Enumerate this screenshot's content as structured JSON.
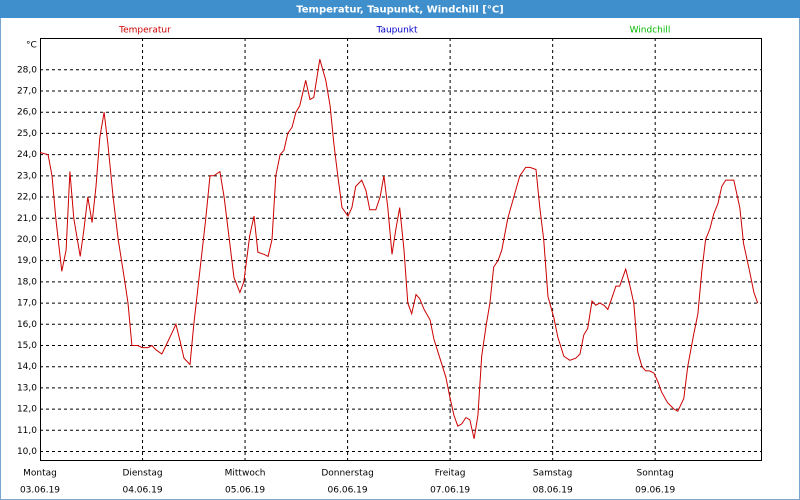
{
  "chart_data": {
    "type": "line",
    "title": "Temperatur, Taupunkt, Windchill [°C]",
    "y_unit": "°C",
    "x": [
      0,
      1.9,
      2.8,
      3.7,
      5.1,
      6.1,
      7.0,
      7.9,
      9.4,
      10.3,
      11.2,
      12.2,
      13.1,
      14.0,
      15.0,
      15.9,
      17.1,
      18.3,
      19.7,
      20.6,
      21.5,
      22.9,
      23.9,
      25.3,
      26.2,
      27.1,
      28.5,
      29.5,
      30.9,
      31.8,
      32.8,
      33.7,
      35.1,
      36.0,
      37.4,
      38.8,
      39.8,
      40.7,
      42.1,
      43.1,
      44.0,
      45.4,
      46.8,
      47.7,
      49.1,
      50.1,
      51.0,
      52.4,
      53.4,
      54.3,
      55.2,
      56.2,
      57.1,
      58.0,
      59.0,
      59.9,
      60.8,
      62.2,
      63.2,
      64.1,
      65.5,
      66.9,
      67.9,
      68.8,
      69.7,
      70.7,
      72.1,
      73.0,
      73.9,
      75.3,
      76.3,
      77.2,
      78.6,
      79.6,
      80.5,
      81.4,
      82.4,
      83.3,
      84.2,
      85.2,
      86.1,
      87.0,
      88.0,
      88.9,
      89.9,
      91.3,
      92.2,
      93.6,
      95.0,
      95.9,
      96.9,
      97.8,
      98.7,
      99.7,
      100.6,
      101.6,
      102.5,
      103.4,
      104.4,
      105.3,
      106.2,
      107.2,
      108.1,
      109.5,
      110.9,
      112.3,
      113.7,
      114.7,
      116.1,
      117.0,
      117.9,
      118.9,
      120.3,
      121.2,
      122.6,
      124.0,
      125.4,
      126.4,
      127.3,
      128.2,
      129.2,
      130.1,
      131.0,
      132.0,
      132.9,
      133.8,
      134.8,
      135.7,
      137.1,
      138.1,
      139.0,
      139.9,
      140.9,
      141.8,
      142.7,
      143.7,
      144.6,
      145.5,
      146.9,
      148.4,
      149.3,
      150.7,
      151.6,
      153.0,
      154.0,
      154.9,
      155.8,
      156.8,
      157.7,
      158.7,
      159.6,
      160.5,
      161.5,
      162.4,
      163.8,
      164.7,
      166.1,
      167.1,
      168.0
    ],
    "series": [
      {
        "name": "Temperatur",
        "color": "#cc0000",
        "values": [
          24.1,
          24.0,
          23,
          21,
          18.5,
          19.5,
          23.2,
          21,
          19.2,
          20.5,
          22,
          20.8,
          22.5,
          24.8,
          26.0,
          24.5,
          22,
          20,
          18.2,
          17,
          15,
          15,
          14.9,
          14.9,
          15,
          14.8,
          14.6,
          15,
          15.6,
          16,
          15.2,
          14.4,
          14.1,
          16,
          18.5,
          21,
          23,
          23,
          23.2,
          22,
          20.5,
          18.2,
          17.5,
          18,
          20.2,
          21.1,
          19.4,
          19.3,
          19.2,
          20,
          23,
          24,
          24.2,
          25,
          25.3,
          26,
          26.3,
          27.5,
          26.6,
          26.7,
          28.5,
          27.5,
          26.3,
          24.5,
          23,
          21.5,
          21.1,
          21.5,
          22.5,
          22.8,
          22.3,
          21.4,
          21.4,
          22,
          23,
          21.5,
          19.3,
          20.5,
          21.5,
          19.5,
          17,
          16.5,
          17.4,
          17.2,
          16.7,
          16.2,
          15.3,
          14.4,
          13.5,
          12.6,
          11.7,
          11.2,
          11.3,
          11.6,
          11.5,
          10.6,
          11.7,
          14.5,
          15.9,
          17,
          18.7,
          19,
          19.5,
          21,
          22,
          23,
          23.4,
          23.4,
          23.3,
          21.5,
          20,
          17.3,
          16.3,
          15.4,
          14.5,
          14.3,
          14.4,
          14.6,
          15.5,
          15.8,
          17.1,
          16.9,
          17,
          16.9,
          16.7,
          17.2,
          17.8,
          17.8,
          18.6,
          17.8,
          17,
          14.7,
          14,
          13.8,
          13.8,
          13.7,
          13.3,
          12.8,
          12.3,
          12,
          11.9,
          12.5,
          14,
          15.5,
          16.5,
          18.5,
          20,
          20.5,
          21.2,
          21.7,
          22.5,
          22.8,
          22.8,
          22.8,
          21.5,
          19.8,
          18.5,
          17.5,
          17
        ]
      }
    ],
    "legend": [
      {
        "name": "Taupunkt",
        "color": "#0000cc"
      },
      {
        "name": "Windchill",
        "color": "#00bb00"
      }
    ],
    "xlim": [
      0,
      169
    ],
    "xticks": [
      {
        "value": 0,
        "label": "Montag"
      },
      {
        "value": 24,
        "label": "Dienstag"
      },
      {
        "value": 48,
        "label": "Mittwoch"
      },
      {
        "value": 72,
        "label": "Donnerstag"
      },
      {
        "value": 96,
        "label": "Freitag"
      },
      {
        "value": 120,
        "label": "Samstag"
      },
      {
        "value": 144,
        "label": "Sonntag"
      }
    ],
    "xtick_dates": [
      "03.06.19",
      "04.06.19",
      "05.06.19",
      "06.06.19",
      "07.06.19",
      "08.06.19",
      "09.06.19"
    ],
    "ylim": [
      9.6,
      29.5
    ],
    "yticks": [
      {
        "value": 10,
        "label": "10,0"
      },
      {
        "value": 11,
        "label": "11,0"
      },
      {
        "value": 12,
        "label": "12,0"
      },
      {
        "value": 13,
        "label": "13,0"
      },
      {
        "value": 14,
        "label": "14,0"
      },
      {
        "value": 15,
        "label": "15,0"
      },
      {
        "value": 16,
        "label": "16,0"
      },
      {
        "value": 17,
        "label": "17,0"
      },
      {
        "value": 18,
        "label": "18,0"
      },
      {
        "value": 19,
        "label": "19,0"
      },
      {
        "value": 20,
        "label": "20,0"
      },
      {
        "value": 21,
        "label": "21,0"
      },
      {
        "value": 22,
        "label": "22,0"
      },
      {
        "value": 23,
        "label": "23,0"
      },
      {
        "value": 24,
        "label": "24,0"
      },
      {
        "value": 25,
        "label": "25,0"
      },
      {
        "value": 26,
        "label": "26,0"
      },
      {
        "value": 27,
        "label": "27,0"
      },
      {
        "value": 28,
        "label": "28,0"
      }
    ],
    "grid": true
  }
}
